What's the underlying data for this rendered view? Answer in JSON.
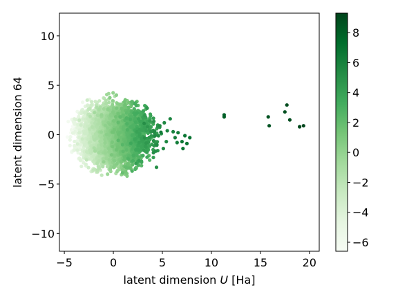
{
  "chart_data": {
    "type": "scatter",
    "title": "",
    "xlabel": "latent dimension U [Ha]",
    "xlabel_parts": {
      "prefix": "latent dimension ",
      "italic": "U",
      "suffix": " [Ha]"
    },
    "ylabel": "latent dimension 64",
    "xlim": [
      -5.5,
      21
    ],
    "ylim": [
      -11.8,
      12.3
    ],
    "xticks": [
      -5,
      0,
      5,
      10,
      15,
      20
    ],
    "yticks": [
      -10,
      -5,
      0,
      5,
      10
    ],
    "xtick_labels": [
      "−5",
      "0",
      "5",
      "10",
      "15",
      "20"
    ],
    "ytick_labels": [
      "−10",
      "−5",
      "0",
      "5",
      "10"
    ],
    "grid": false,
    "colormap": "Greens",
    "colorbar": {
      "vmin": -6.6,
      "vmax": 9.3,
      "ticks": [
        -6,
        -4,
        -2,
        0,
        2,
        4,
        6,
        8
      ],
      "tick_labels": [
        "−6",
        "−4",
        "−2",
        "0",
        "2",
        "4",
        "6",
        "8"
      ]
    },
    "main_cluster": {
      "description_only": false,
      "center": [
        0,
        -0.5
      ],
      "x_range": [
        -4.8,
        5.0
      ],
      "y_range": [
        -4.2,
        4.8
      ],
      "approx_points": 6000
    },
    "outliers": [
      {
        "x": 5.2,
        "y": 1.2,
        "c": 5.5
      },
      {
        "x": 5.5,
        "y": 0.4,
        "c": 5.8
      },
      {
        "x": 5.4,
        "y": -0.7,
        "c": 5.6
      },
      {
        "x": 5.1,
        "y": -1.4,
        "c": 5.4
      },
      {
        "x": 4.4,
        "y": -3.3,
        "c": 5.0
      },
      {
        "x": 5.8,
        "y": 1.6,
        "c": 5.9
      },
      {
        "x": 6.1,
        "y": 0.3,
        "c": 6.0
      },
      {
        "x": 6.6,
        "y": 0.2,
        "c": 6.3
      },
      {
        "x": 6.3,
        "y": -0.3,
        "c": 6.1
      },
      {
        "x": 6.5,
        "y": -0.8,
        "c": 6.2
      },
      {
        "x": 7.0,
        "y": -0.7,
        "c": 6.5
      },
      {
        "x": 7.1,
        "y": -1.4,
        "c": 6.6
      },
      {
        "x": 7.3,
        "y": -0.1,
        "c": 6.7
      },
      {
        "x": 7.5,
        "y": -0.9,
        "c": 6.8
      },
      {
        "x": 7.8,
        "y": -0.3,
        "c": 7.0
      },
      {
        "x": 11.3,
        "y": 2.0,
        "c": 8.0
      },
      {
        "x": 11.3,
        "y": 1.8,
        "c": 8.0
      },
      {
        "x": 15.8,
        "y": 1.8,
        "c": 8.6
      },
      {
        "x": 15.9,
        "y": 0.9,
        "c": 8.6
      },
      {
        "x": 17.5,
        "y": 2.3,
        "c": 8.8
      },
      {
        "x": 17.7,
        "y": 3.0,
        "c": 8.9
      },
      {
        "x": 18.0,
        "y": 1.5,
        "c": 8.9
      },
      {
        "x": 19.0,
        "y": 0.8,
        "c": 9.1
      },
      {
        "x": 19.4,
        "y": 0.9,
        "c": 9.2
      }
    ]
  }
}
